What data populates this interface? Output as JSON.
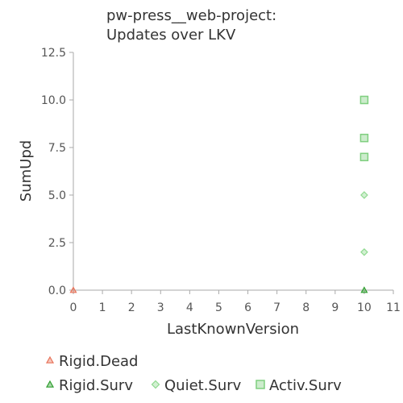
{
  "chart_data": {
    "type": "scatter",
    "title": [
      "pw-press__web-project:",
      "Updates over LKV"
    ],
    "xlabel": "LastKnownVersion",
    "ylabel": "SumUpd",
    "xlim": [
      0,
      11
    ],
    "ylim": [
      0,
      12.5
    ],
    "x_ticks": [
      "0",
      "1",
      "2",
      "3",
      "4",
      "5",
      "6",
      "7",
      "8",
      "9",
      "10",
      "11"
    ],
    "y_ticks": [
      "0.0",
      "2.5",
      "5.0",
      "7.5",
      "10.0",
      "12.5"
    ],
    "grid": false,
    "legend_position": "bottom",
    "series": [
      {
        "name": "Rigid.Dead",
        "marker": "triangle",
        "color": "#e8735a",
        "points": [
          [
            0,
            0
          ]
        ]
      },
      {
        "name": "Rigid.Surv",
        "marker": "triangle",
        "color": "#2e9e2e",
        "points": [
          [
            10,
            0
          ]
        ]
      },
      {
        "name": "Quiet.Surv",
        "marker": "diamond",
        "color": "#8fd98f",
        "points": [
          [
            10,
            2
          ],
          [
            10,
            5
          ]
        ]
      },
      {
        "name": "Activ.Surv",
        "marker": "square",
        "color": "#7fcf7f",
        "points": [
          [
            10,
            7
          ],
          [
            10,
            8
          ],
          [
            10,
            10
          ]
        ]
      }
    ]
  }
}
